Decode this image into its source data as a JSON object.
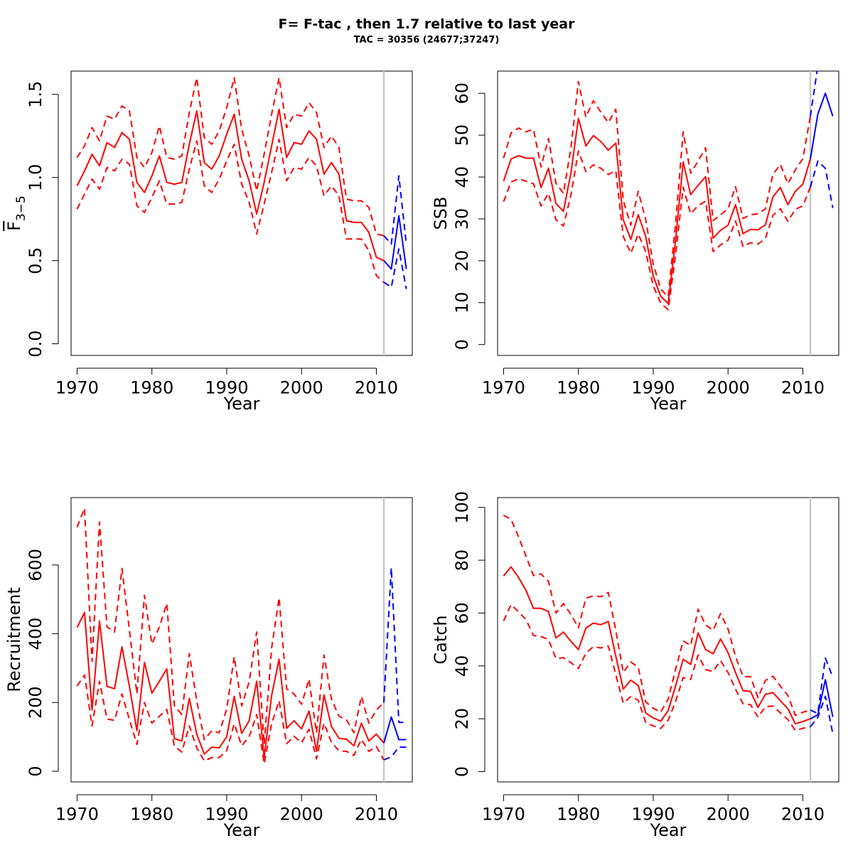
{
  "title": "F= F-tac , then 1.7  relative to last year",
  "subtitle": "TAC = 30356 (24677;37247)",
  "colors": {
    "historic": "#ff0000",
    "forecast": "#0000ff",
    "marker": "#c8c8c8",
    "axis": "#000000"
  },
  "chart_data": [
    {
      "id": "fbar",
      "type": "line",
      "xlabel": "Year",
      "ylabel": "F",
      "ylabel_subscript": "3−5",
      "xticks": [
        "1970",
        "1980",
        "1990",
        "2000",
        "2010"
      ],
      "yticks": [
        "0.0",
        "0.5",
        "1.0",
        "1.5"
      ],
      "xlim": [
        1969.2,
        2014.8
      ],
      "ylim": [
        -0.07,
        1.64
      ],
      "vline_year": 2011,
      "x": [
        1970,
        1971,
        1972,
        1973,
        1974,
        1975,
        1976,
        1977,
        1978,
        1979,
        1980,
        1981,
        1982,
        1983,
        1984,
        1985,
        1986,
        1987,
        1988,
        1989,
        1990,
        1991,
        1992,
        1993,
        1994,
        1995,
        1996,
        1997,
        1998,
        1999,
        2000,
        2001,
        2002,
        2003,
        2004,
        2005,
        2006,
        2007,
        2008,
        2009,
        2010,
        2011
      ],
      "series": [
        {
          "role": "estimate",
          "values": [
            0.95,
            1.04,
            1.14,
            1.07,
            1.21,
            1.18,
            1.27,
            1.23,
            0.97,
            0.91,
            1.01,
            1.13,
            0.97,
            0.96,
            0.97,
            1.2,
            1.4,
            1.09,
            1.05,
            1.13,
            1.26,
            1.38,
            1.11,
            0.98,
            0.78,
            0.97,
            1.19,
            1.41,
            1.12,
            1.21,
            1.2,
            1.28,
            1.23,
            1.02,
            1.09,
            1.02,
            0.74,
            0.73,
            0.73,
            0.67,
            0.52,
            0.5
          ]
        },
        {
          "role": "upper",
          "values": [
            1.12,
            1.19,
            1.3,
            1.22,
            1.37,
            1.35,
            1.43,
            1.4,
            1.12,
            1.06,
            1.15,
            1.31,
            1.12,
            1.11,
            1.13,
            1.39,
            1.6,
            1.24,
            1.2,
            1.28,
            1.42,
            1.6,
            1.29,
            1.13,
            0.92,
            1.14,
            1.38,
            1.6,
            1.3,
            1.38,
            1.37,
            1.45,
            1.39,
            1.18,
            1.25,
            1.18,
            0.87,
            0.86,
            0.86,
            0.82,
            0.66,
            0.65
          ]
        },
        {
          "role": "lower",
          "values": [
            0.81,
            0.9,
            0.99,
            0.93,
            1.06,
            1.04,
            1.11,
            1.08,
            0.83,
            0.79,
            0.88,
            0.98,
            0.84,
            0.84,
            0.85,
            1.05,
            1.22,
            0.95,
            0.91,
            0.99,
            1.1,
            1.2,
            0.96,
            0.85,
            0.66,
            0.84,
            1.03,
            1.23,
            0.98,
            1.06,
            1.05,
            1.12,
            1.07,
            0.89,
            0.95,
            0.89,
            0.63,
            0.63,
            0.63,
            0.56,
            0.41,
            0.37
          ]
        }
      ],
      "forecast_x": [
        2011,
        2012,
        2013,
        2014
      ],
      "forecast": [
        {
          "role": "estimate",
          "values": [
            0.5,
            0.45,
            0.77,
            0.45
          ]
        },
        {
          "role": "upper",
          "values": [
            0.65,
            0.6,
            1.01,
            0.6
          ]
        },
        {
          "role": "lower",
          "values": [
            0.37,
            0.34,
            0.57,
            0.33
          ]
        }
      ]
    },
    {
      "id": "ssb",
      "type": "line",
      "xlabel": "Year",
      "ylabel": "SSB",
      "xticks": [
        "1970",
        "1980",
        "1990",
        "2000",
        "2010"
      ],
      "yticks": [
        "0",
        "10",
        "20",
        "30",
        "40",
        "50",
        "60"
      ],
      "xlim": [
        1969.2,
        2014.8
      ],
      "ylim": [
        -2.6,
        65.3
      ],
      "vline_year": 2011,
      "x": [
        1970,
        1971,
        1972,
        1973,
        1974,
        1975,
        1976,
        1977,
        1978,
        1979,
        1980,
        1981,
        1982,
        1983,
        1984,
        1985,
        1986,
        1987,
        1988,
        1989,
        1990,
        1991,
        1992,
        1993,
        1994,
        1995,
        1996,
        1997,
        1998,
        1999,
        2000,
        2001,
        2002,
        2003,
        2004,
        2005,
        2006,
        2007,
        2008,
        2009,
        2010,
        2011
      ],
      "series": [
        {
          "role": "estimate",
          "values": [
            39,
            44.3,
            45.1,
            44.5,
            44.5,
            37.5,
            42.1,
            33.7,
            31.8,
            41.0,
            54.0,
            47.4,
            49.9,
            48.5,
            46.4,
            48.1,
            29.8,
            25.1,
            31.0,
            25.8,
            16.4,
            11.5,
            9.8,
            25.1,
            43.6,
            35.8,
            38.0,
            40.1,
            25.4,
            27.3,
            28.5,
            33.4,
            26.5,
            27.5,
            27.4,
            28.6,
            35.3,
            37.5,
            33.4,
            36.6,
            38.3,
            44.3
          ]
        },
        {
          "role": "upper",
          "values": [
            44.5,
            50.5,
            51.7,
            50.8,
            51.4,
            42.4,
            49.2,
            38.5,
            36.1,
            47.0,
            62.8,
            54.3,
            58.2,
            55.5,
            53.0,
            56.2,
            34.4,
            28.5,
            36.6,
            29.8,
            19.3,
            13.2,
            11.4,
            29.1,
            50.8,
            40.9,
            43.8,
            47.0,
            29.6,
            31.0,
            32.4,
            37.7,
            30.1,
            31.0,
            31.2,
            32.4,
            40.7,
            43.0,
            38.4,
            41.7,
            44.4,
            54.5
          ]
        },
        {
          "role": "lower",
          "values": [
            34.1,
            38.8,
            39.6,
            39.0,
            38.4,
            33.1,
            36.1,
            29.8,
            28.3,
            35.7,
            46.2,
            41.3,
            42.9,
            42.1,
            40.6,
            41.5,
            25.8,
            21.8,
            26.4,
            22.2,
            14.0,
            9.9,
            8.3,
            21.6,
            37.6,
            31.2,
            33.2,
            34.2,
            22.2,
            23.8,
            24.9,
            29.5,
            23.4,
            24.3,
            24.0,
            25.3,
            30.9,
            32.4,
            29.4,
            32.3,
            33.1,
            37.6
          ]
        }
      ],
      "forecast_x": [
        2011,
        2012,
        2013,
        2014
      ],
      "forecast": [
        {
          "role": "estimate",
          "values": [
            44.3,
            55.0,
            60.0,
            54.5
          ]
        },
        {
          "role": "upper",
          "values": [
            54.5,
            66.5,
            74.0,
            68.5
          ]
        },
        {
          "role": "lower",
          "values": [
            37.6,
            43.8,
            42.1,
            32.6
          ]
        }
      ]
    },
    {
      "id": "recruitment",
      "type": "line",
      "xlabel": "Year",
      "ylabel": "Recruitment",
      "xticks": [
        "1970",
        "1980",
        "1990",
        "2000",
        "2010"
      ],
      "yticks": [
        "0",
        "200",
        "400",
        "600"
      ],
      "xlim": [
        1969.2,
        2014.8
      ],
      "ylim": [
        -31,
        796
      ],
      "vline_year": 2011,
      "x": [
        1970,
        1971,
        1972,
        1973,
        1974,
        1975,
        1976,
        1977,
        1978,
        1979,
        1980,
        1981,
        1982,
        1983,
        1984,
        1985,
        1986,
        1987,
        1988,
        1989,
        1990,
        1991,
        1992,
        1993,
        1994,
        1995,
        1996,
        1997,
        1998,
        1999,
        2000,
        2001,
        2002,
        2003,
        2004,
        2005,
        2006,
        2007,
        2008,
        2009,
        2010,
        2011
      ],
      "series": [
        {
          "role": "estimate",
          "values": [
            418,
            462,
            178,
            437,
            247,
            240,
            362,
            246,
            118,
            317,
            227,
            262,
            298,
            95,
            88,
            212,
            108,
            50,
            70,
            68,
            100,
            218,
            110,
            147,
            262,
            40,
            220,
            326,
            125,
            147,
            123,
            175,
            58,
            222,
            130,
            96,
            93,
            74,
            140,
            88,
            108,
            82
          ]
        },
        {
          "role": "upper",
          "values": [
            710,
            765,
            320,
            725,
            420,
            405,
            590,
            410,
            225,
            512,
            370,
            420,
            488,
            190,
            165,
            342,
            205,
            92,
            118,
            112,
            180,
            333,
            190,
            260,
            405,
            78,
            358,
            505,
            240,
            225,
            195,
            268,
            112,
            338,
            210,
            160,
            150,
            112,
            218,
            140,
            178,
            200
          ]
        },
        {
          "role": "lower",
          "values": [
            248,
            280,
            132,
            262,
            152,
            148,
            225,
            150,
            78,
            200,
            140,
            160,
            180,
            73,
            56,
            132,
            68,
            30,
            40,
            40,
            60,
            138,
            74,
            100,
            165,
            22,
            138,
            205,
            80,
            102,
            83,
            122,
            36,
            140,
            84,
            60,
            58,
            46,
            93,
            58,
            72,
            33
          ]
        }
      ],
      "forecast_x": [
        2011,
        2012,
        2013,
        2014
      ],
      "forecast": [
        {
          "role": "estimate",
          "values": [
            82,
            158,
            92,
            92
          ]
        },
        {
          "role": "upper",
          "values": [
            200,
            592,
            142,
            142
          ]
        },
        {
          "role": "lower",
          "values": [
            33,
            42,
            70,
            70
          ]
        }
      ]
    },
    {
      "id": "catch",
      "type": "line",
      "xlabel": "Year",
      "ylabel": "Catch",
      "xticks": [
        "1970",
        "1980",
        "1990",
        "2000",
        "2010"
      ],
      "yticks": [
        "0",
        "20",
        "40",
        "60",
        "80",
        "100"
      ],
      "xlim": [
        1969.2,
        2014.8
      ],
      "ylim": [
        -3.9,
        103.7
      ],
      "vline_year": 2011,
      "x": [
        1970,
        1971,
        1972,
        1973,
        1974,
        1975,
        1976,
        1977,
        1978,
        1979,
        1980,
        1981,
        1982,
        1983,
        1984,
        1985,
        1986,
        1987,
        1988,
        1989,
        1990,
        1991,
        1992,
        1993,
        1994,
        1995,
        1996,
        1997,
        1998,
        1999,
        2000,
        2001,
        2002,
        2003,
        2004,
        2005,
        2006,
        2007,
        2008,
        2009,
        2010,
        2011
      ],
      "series": [
        {
          "role": "estimate",
          "values": [
            74,
            77.5,
            73.5,
            68.5,
            61.8,
            61.8,
            60.6,
            50.6,
            52.8,
            49.3,
            46.2,
            54.3,
            56.2,
            55.6,
            56.8,
            43.7,
            31.2,
            34.6,
            32.6,
            22.2,
            20.3,
            19.1,
            23.1,
            32.5,
            42.5,
            40.6,
            52.5,
            46.2,
            44.6,
            50.2,
            45.0,
            37.5,
            30.6,
            30.4,
            24.3,
            29.3,
            29.9,
            26.8,
            23.8,
            18.1,
            19.0,
            20.0
          ]
        },
        {
          "role": "upper",
          "values": [
            97,
            95.5,
            88.8,
            81.5,
            74.2,
            74.8,
            72.0,
            60.0,
            63.6,
            59.5,
            54.4,
            65.6,
            66.5,
            66.2,
            67.8,
            53.4,
            37.5,
            41.5,
            39.5,
            26.4,
            24.0,
            22.5,
            27.5,
            38.8,
            49.5,
            47.7,
            61.5,
            55.5,
            53.5,
            59.8,
            54.0,
            43.6,
            36.0,
            35.9,
            28.0,
            34.5,
            36.1,
            32.3,
            28.8,
            21.3,
            22.5,
            23.3
          ]
        },
        {
          "role": "lower",
          "values": [
            57,
            63.2,
            60.5,
            57.5,
            51.5,
            51.1,
            50.0,
            42.8,
            43.1,
            41.2,
            39.0,
            44.8,
            47.3,
            46.8,
            47.5,
            36.7,
            25.9,
            28.4,
            27.0,
            18.6,
            17.3,
            16.3,
            19.5,
            26.6,
            35.6,
            34.9,
            44.1,
            38.6,
            37.9,
            42.0,
            37.5,
            31.2,
            25.7,
            25.3,
            20.6,
            24.6,
            24.8,
            22.2,
            19.7,
            15.6,
            16.4,
            17.0
          ]
        }
      ],
      "forecast_x": [
        2011,
        2012,
        2013,
        2014
      ],
      "forecast": [
        {
          "role": "estimate",
          "values": [
            20.0,
            21.5,
            34.8,
            20.7
          ]
        },
        {
          "role": "upper",
          "values": [
            23.3,
            22.0,
            43.0,
            35.7
          ]
        },
        {
          "role": "lower",
          "values": [
            17.0,
            20.5,
            28.5,
            14.3
          ]
        }
      ]
    }
  ]
}
